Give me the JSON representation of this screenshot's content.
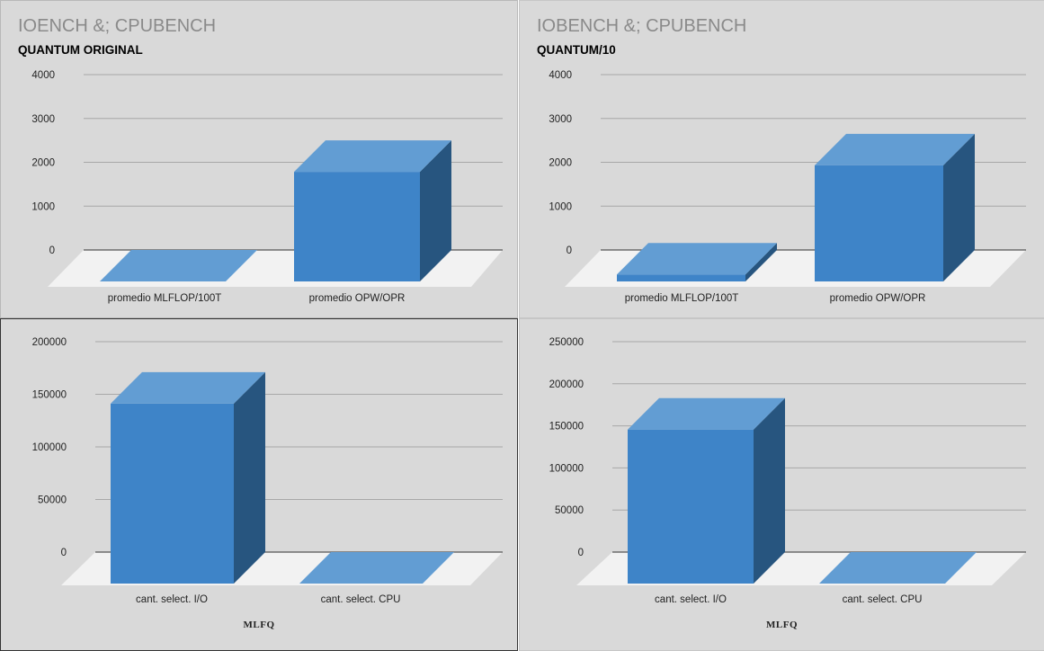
{
  "colors": {
    "bar_front": "#3e84c8",
    "bar_top": "#629dd3",
    "bar_side": "#27557f",
    "floor": "#f2f2f2",
    "grid": "#a8a8a8",
    "baseline": "#555555"
  },
  "panels": [
    {
      "title": "IOENCH &; CPUBENCH",
      "subtitle": "QUANTUM ORIGINAL",
      "xtitle": ""
    },
    {
      "title": "IOBENCH &; CPUBENCH",
      "subtitle": "QUANTUM/10",
      "xtitle": ""
    },
    {
      "title": "",
      "subtitle": "",
      "xtitle": "MLFQ"
    },
    {
      "title": "",
      "subtitle": "",
      "xtitle": "MLFQ"
    }
  ],
  "chart_data": [
    {
      "type": "bar",
      "three_d": true,
      "title": "IOENCH &; CPUBENCH",
      "subtitle": "QUANTUM ORIGINAL",
      "categories": [
        "promedio MLFLOP/100T",
        "promedio OPW/OPR"
      ],
      "values": [
        0,
        2500
      ],
      "ylim": [
        0,
        4000
      ],
      "yticks": [
        0,
        1000,
        2000,
        3000,
        4000
      ],
      "grid": true,
      "legend": "none"
    },
    {
      "type": "bar",
      "three_d": true,
      "title": "IOBENCH &; CPUBENCH",
      "subtitle": "QUANTUM/10",
      "categories": [
        "promedio MLFLOP/100T",
        "promedio OPW/OPR"
      ],
      "values": [
        160,
        2650
      ],
      "ylim": [
        0,
        4000
      ],
      "yticks": [
        0,
        1000,
        2000,
        3000,
        4000
      ],
      "grid": true,
      "legend": "none"
    },
    {
      "type": "bar",
      "three_d": true,
      "xlabel": "MLFQ",
      "categories": [
        "cant. select. I/O",
        "cant. select. CPU"
      ],
      "values": [
        171000,
        0
      ],
      "ylim": [
        0,
        200000
      ],
      "yticks": [
        0,
        50000,
        100000,
        150000,
        200000
      ],
      "grid": true,
      "legend": "none"
    },
    {
      "type": "bar",
      "three_d": true,
      "xlabel": "MLFQ",
      "categories": [
        "cant. select. I/O",
        "cant. select. CPU"
      ],
      "values": [
        183000,
        0
      ],
      "ylim": [
        0,
        250000
      ],
      "yticks": [
        0,
        50000,
        100000,
        150000,
        200000,
        250000
      ],
      "grid": true,
      "legend": "none"
    }
  ]
}
